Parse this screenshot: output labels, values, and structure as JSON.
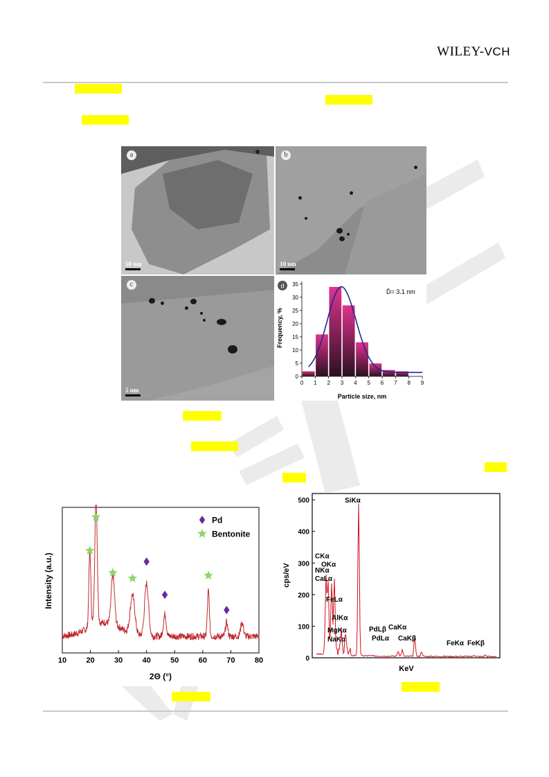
{
  "header": {
    "publisher_main": "WILEY",
    "publisher_sep": "-",
    "publisher_suffix": "VCH"
  },
  "tem_panels": [
    {
      "label": "a",
      "scale": "50 nm"
    },
    {
      "label": "b",
      "scale": "10 nm"
    },
    {
      "label": "c",
      "scale": "5 nm"
    }
  ],
  "histogram": {
    "label": "d",
    "annotation": "D̄= 3.1 nm",
    "ylabel": "Frequency, %",
    "xlabel": "Particle size, nm",
    "yticks": [
      "0",
      "5",
      "10",
      "15",
      "20",
      "25",
      "30",
      "35"
    ],
    "xticks": [
      "0",
      "1",
      "2",
      "3",
      "4",
      "5",
      "6",
      "7",
      "8",
      "9"
    ],
    "colors": {
      "top": "#e0338f",
      "bottom": "#2a1020",
      "curve": "#1f2a8a"
    }
  },
  "chart_data": [
    {
      "type": "bar",
      "x": [
        0.5,
        1.5,
        2.5,
        3.5,
        4.5,
        5.5,
        6.5,
        7.5
      ],
      "values": [
        2,
        16,
        34,
        27,
        13,
        5,
        2.5,
        2
      ],
      "xlabel": "Particle size, nm",
      "ylabel": "Frequency, %",
      "xlim": [
        0,
        9
      ],
      "ylim": [
        0,
        36
      ],
      "annotation": "D̄= 3.1 nm"
    },
    {
      "type": "line",
      "xlabel": "2Θ (°)",
      "ylabel": "Intensity (a.u.)",
      "xlim": [
        10,
        80
      ],
      "xticks": [
        "10",
        "20",
        "30",
        "40",
        "50",
        "60",
        "70",
        "80"
      ],
      "series": [
        {
          "name": "Pd",
          "marker": "diamond",
          "color": "#6a2a9a",
          "x": [
            40,
            46.5,
            68.5
          ]
        },
        {
          "name": "Bentonite",
          "marker": "star",
          "color": "#8fd46a",
          "x": [
            19.8,
            22,
            28,
            35,
            62
          ]
        }
      ],
      "line_color": "#c0272d",
      "legend": "top-right"
    },
    {
      "type": "line",
      "xlabel": "KeV",
      "ylabel": "cps/eV",
      "ylim": [
        0,
        520
      ],
      "yticks": [
        "0",
        "100",
        "200",
        "300",
        "400",
        "500"
      ],
      "line_color": "#d0101a",
      "peaks": [
        {
          "label": "SiKα",
          "height": 480
        },
        {
          "label": "CKα",
          "height": 300
        },
        {
          "label": "OKα",
          "height": 290
        },
        {
          "label": "NKα",
          "height": 240
        },
        {
          "label": "CaLα",
          "height": 225
        },
        {
          "label": "FeLα",
          "height": 225
        },
        {
          "label": "AlKα",
          "height": 100
        },
        {
          "label": "MgKα",
          "height": 60
        },
        {
          "label": "NaKα",
          "height": 40
        },
        {
          "label": "PdLβ",
          "height": 20
        },
        {
          "label": "PdLα",
          "height": 15
        },
        {
          "label": "CaKα",
          "height": 60
        },
        {
          "label": "CaKβ",
          "height": 15
        },
        {
          "label": "FeKα",
          "height": 5
        },
        {
          "label": "FeKβ",
          "height": 5
        }
      ]
    }
  ]
}
